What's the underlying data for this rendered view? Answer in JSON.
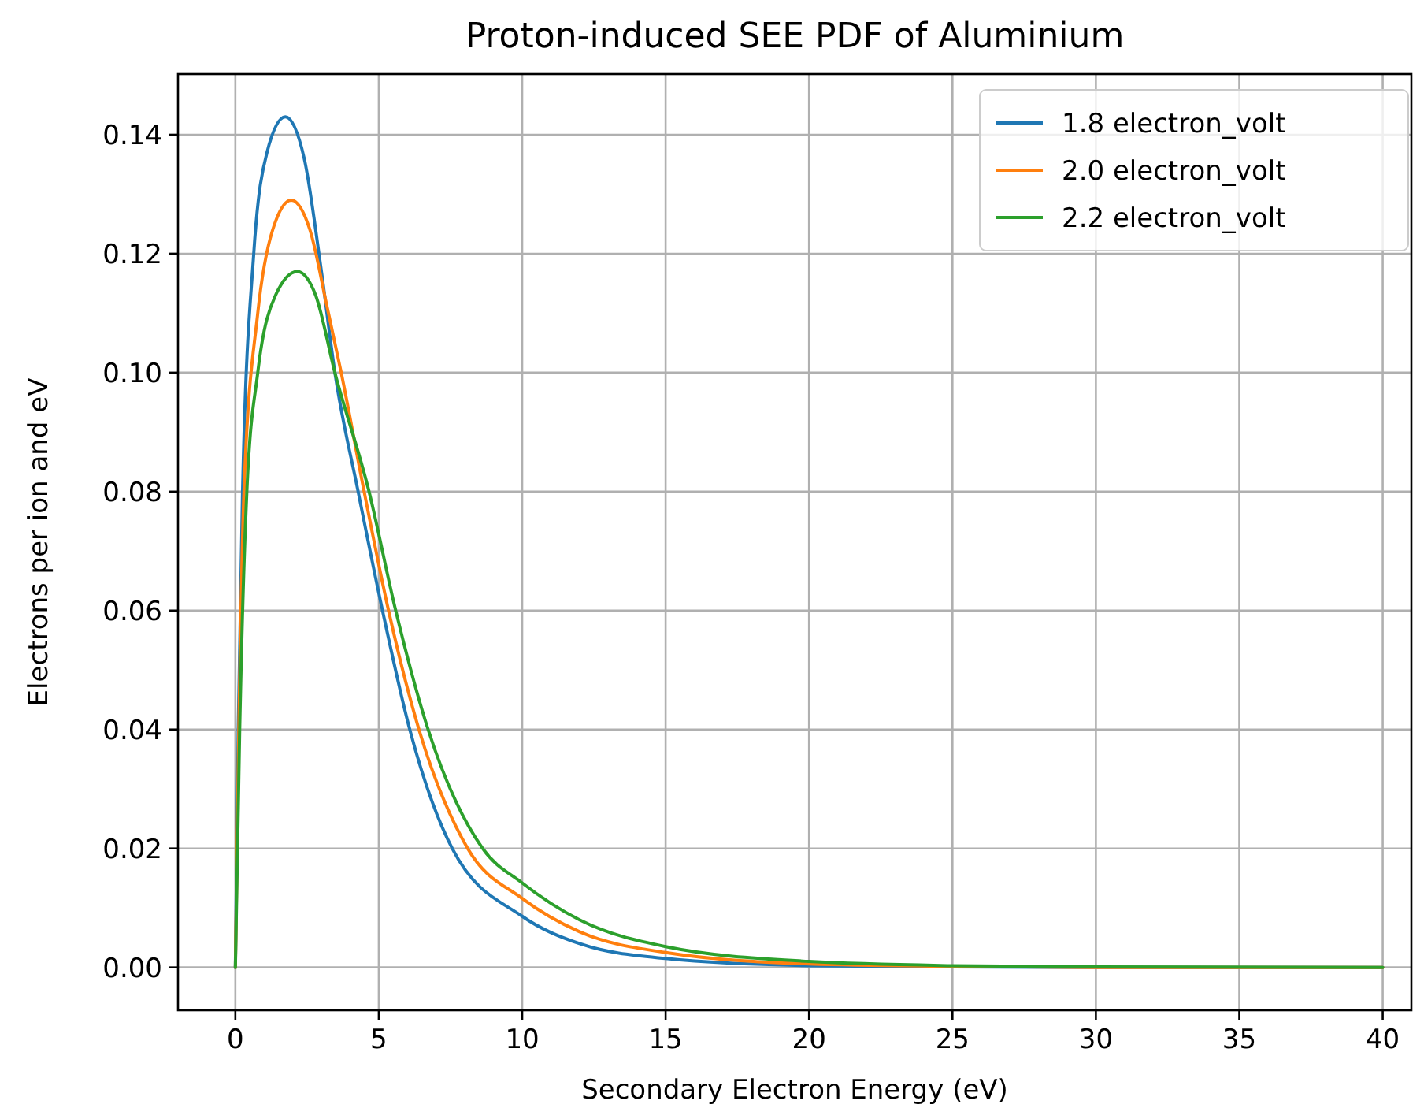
{
  "chart_data": {
    "type": "line",
    "title": "Proton-induced SEE PDF of Aluminium",
    "xlabel": "Secondary Electron Energy (eV)",
    "ylabel": "Electrons per ion and eV",
    "xlim": [
      -2,
      41
    ],
    "ylim": [
      -0.0072,
      0.1502
    ],
    "xticks": [
      0,
      5,
      10,
      15,
      20,
      25,
      30,
      35,
      40
    ],
    "yticks": [
      {
        "value": 0,
        "label": "0.00"
      },
      {
        "value": 0.02,
        "label": "0.02"
      },
      {
        "value": 0.04,
        "label": "0.04"
      },
      {
        "value": 0.06,
        "label": "0.06"
      },
      {
        "value": 0.08,
        "label": "0.08"
      },
      {
        "value": 0.1,
        "label": "0.10"
      },
      {
        "value": 0.12,
        "label": "0.12"
      },
      {
        "value": 0.14,
        "label": "0.14"
      }
    ],
    "grid": true,
    "legend": "top right",
    "line_style": "solid",
    "marker": "none",
    "series": [
      {
        "name": "1.8 electron_volt",
        "color": "#1f77b4",
        "x": [
          0,
          0.1,
          0.25,
          0.64,
          1.1,
          1.74,
          2.4,
          3.0,
          3.47,
          4.28,
          5.13,
          6.08,
          7.56,
          10,
          12,
          15,
          20,
          25,
          30,
          40
        ],
        "values": [
          0,
          0.04,
          0.08,
          0.12,
          0.137,
          0.143,
          0.136,
          0.117,
          0.1,
          0.08,
          0.06,
          0.04,
          0.02,
          0.0086,
          0.004,
          0.0015,
          0.0003,
          0.0001,
          0,
          0
        ]
      },
      {
        "name": "2.0 electron_volt",
        "color": "#ff7f0e",
        "x": [
          0,
          0.12,
          0.3,
          0.78,
          1.3,
          1.95,
          2.6,
          3.2,
          3.69,
          4.49,
          5.34,
          6.4,
          8.1,
          10,
          12,
          15,
          20,
          25,
          30,
          40
        ],
        "values": [
          0,
          0.04,
          0.08,
          0.11,
          0.124,
          0.129,
          0.124,
          0.111,
          0.1,
          0.08,
          0.06,
          0.04,
          0.02,
          0.0116,
          0.006,
          0.0025,
          0.0006,
          0.0002,
          0,
          0
        ]
      },
      {
        "name": "2.2 electron_volt",
        "color": "#2ca02c",
        "x": [
          0,
          0.15,
          0.4,
          0.78,
          1.4,
          2.16,
          2.8,
          3.47,
          4.66,
          5.59,
          6.72,
          8.62,
          10,
          12,
          15,
          20,
          25,
          30,
          40
        ],
        "values": [
          0,
          0.04,
          0.08,
          0.1,
          0.113,
          0.117,
          0.113,
          0.1,
          0.08,
          0.06,
          0.04,
          0.02,
          0.0142,
          0.008,
          0.0035,
          0.001,
          0.0003,
          0.0001,
          0
        ]
      }
    ]
  }
}
